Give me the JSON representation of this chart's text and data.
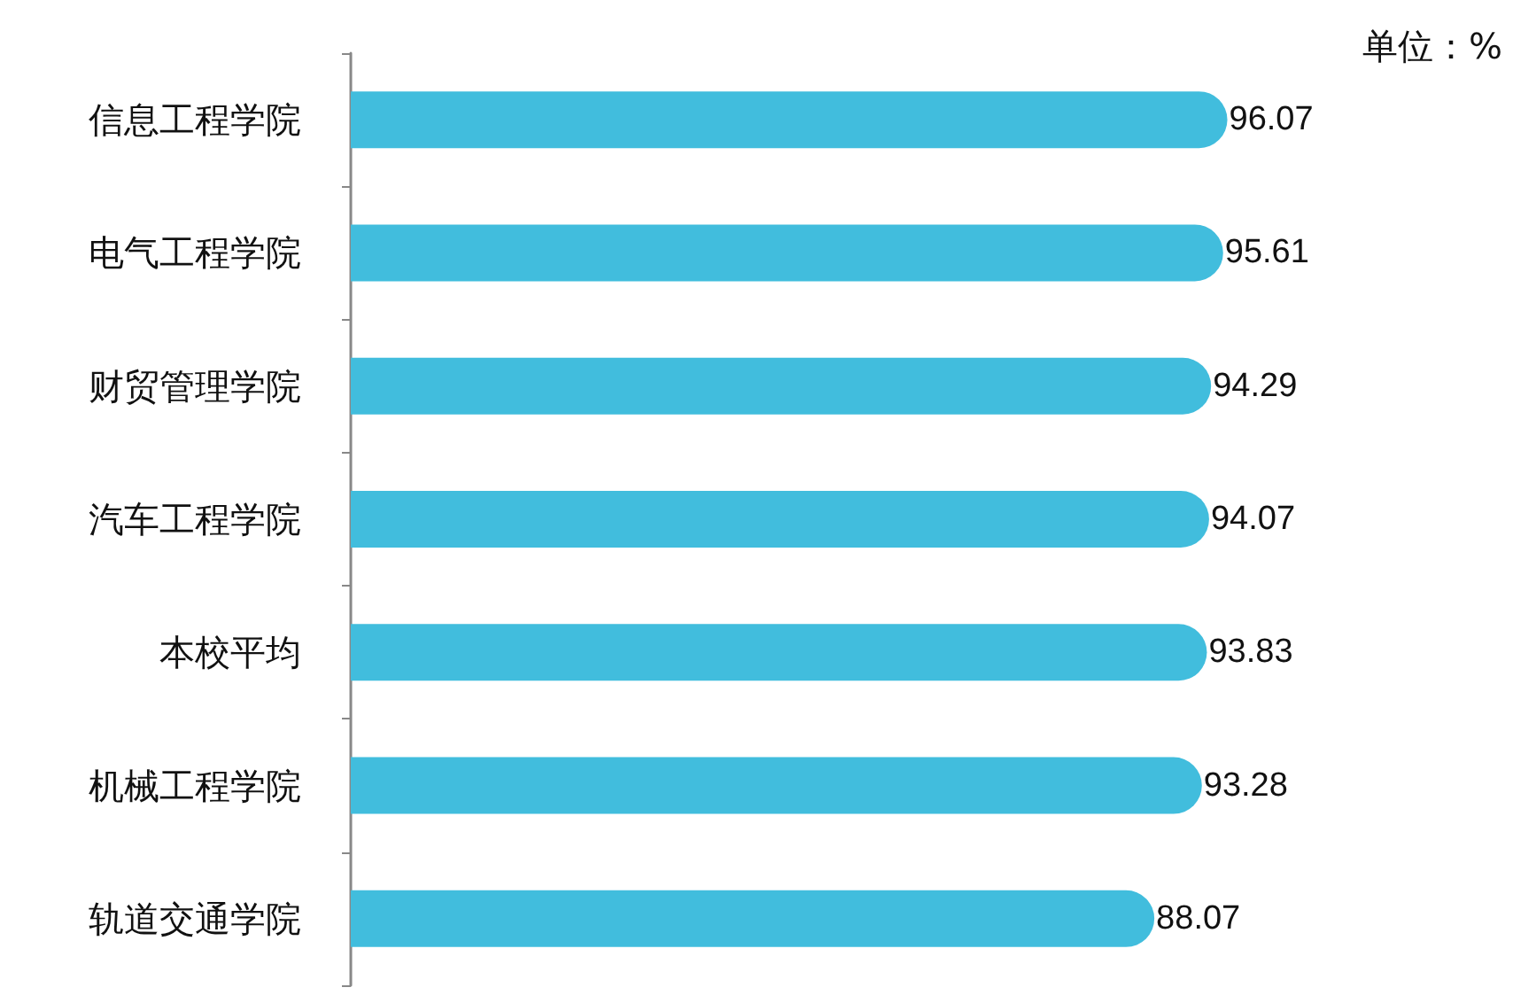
{
  "chart_data": {
    "type": "bar",
    "orientation": "horizontal",
    "categories": [
      "信息工程学院",
      "电气工程学院",
      "财贸管理学院",
      "汽车工程学院",
      "本校平均",
      "机械工程学院",
      "轨道交通学院"
    ],
    "values": [
      96.07,
      95.61,
      94.29,
      94.07,
      93.83,
      93.28,
      88.07
    ],
    "color": "#41bddd",
    "data_labels": true,
    "annotations": [
      "单位：%"
    ]
  }
}
